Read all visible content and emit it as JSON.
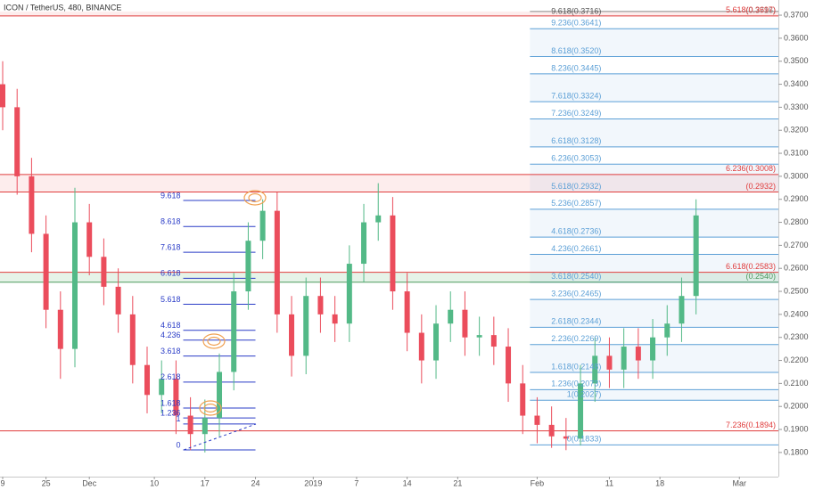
{
  "chart_data": {
    "type": "candlestick",
    "title": "ICON / TetherUS, 480, BINANCE",
    "up_color": "#53b987",
    "down_color": "#eb4d5c",
    "xlim": [
      -0.37,
      107.4
    ],
    "xticks": [
      {
        "value": 0,
        "label": "9"
      },
      {
        "value": 6,
        "label": "25"
      },
      {
        "value": 12,
        "label": "Dec"
      },
      {
        "value": 21,
        "label": "10"
      },
      {
        "value": 28,
        "label": "17"
      },
      {
        "value": 35,
        "label": "24"
      },
      {
        "value": 43,
        "label": "2019"
      },
      {
        "value": 49,
        "label": "7"
      },
      {
        "value": 56,
        "label": "14"
      },
      {
        "value": 63,
        "label": "21"
      },
      {
        "value": 74,
        "label": "Feb"
      },
      {
        "value": 84,
        "label": "11"
      },
      {
        "value": 91,
        "label": "18"
      },
      {
        "value": 102,
        "label": "Mar"
      }
    ],
    "ylim": [
      0.1695,
      0.3766
    ],
    "yticks": [
      {
        "value": 0.18,
        "label": "0.1800"
      },
      {
        "value": 0.19,
        "label": "0.1900"
      },
      {
        "value": 0.2,
        "label": "0.2000"
      },
      {
        "value": 0.21,
        "label": "0.2100"
      },
      {
        "value": 0.22,
        "label": "0.2200"
      },
      {
        "value": 0.23,
        "label": "0.2300"
      },
      {
        "value": 0.24,
        "label": "0.2400"
      },
      {
        "value": 0.25,
        "label": "0.2500"
      },
      {
        "value": 0.26,
        "label": "0.2600"
      },
      {
        "value": 0.27,
        "label": "0.2700"
      },
      {
        "value": 0.28,
        "label": "0.2800"
      },
      {
        "value": 0.29,
        "label": "0.2900"
      },
      {
        "value": 0.3,
        "label": "0.3000"
      },
      {
        "value": 0.31,
        "label": "0.3100"
      },
      {
        "value": 0.32,
        "label": "0.3200"
      },
      {
        "value": 0.33,
        "label": "0.3300"
      },
      {
        "value": 0.34,
        "label": "0.3400"
      },
      {
        "value": 0.35,
        "label": "0.3500"
      },
      {
        "value": 0.36,
        "label": "0.3600"
      },
      {
        "value": 0.37,
        "label": "0.3700"
      }
    ],
    "x": [
      0,
      2,
      4,
      6,
      8,
      10,
      12,
      14,
      16,
      18,
      20,
      22,
      24,
      26,
      28,
      30,
      32,
      34,
      36,
      38,
      40,
      42,
      44,
      46,
      48,
      50,
      52,
      54,
      56,
      58,
      60,
      62,
      64,
      66,
      68,
      70,
      72,
      74,
      76,
      78,
      80,
      82,
      84,
      86,
      88,
      90,
      92,
      94,
      96
    ],
    "open": [
      0.34,
      0.33,
      0.3,
      0.275,
      0.242,
      0.225,
      0.28,
      0.265,
      0.252,
      0.24,
      0.218,
      0.205,
      0.212,
      0.196,
      0.188,
      0.195,
      0.215,
      0.25,
      0.272,
      0.285,
      0.24,
      0.222,
      0.248,
      0.24,
      0.236,
      0.262,
      0.28,
      0.283,
      0.25,
      0.232,
      0.22,
      0.236,
      0.242,
      0.23,
      0.231,
      0.226,
      0.21,
      0.196,
      0.192,
      0.187,
      0.186,
      0.21,
      0.222,
      0.216,
      0.226,
      0.22,
      0.23,
      0.236,
      0.248
    ],
    "high": [
      0.35,
      0.338,
      0.308,
      0.283,
      0.25,
      0.295,
      0.288,
      0.273,
      0.26,
      0.248,
      0.226,
      0.22,
      0.22,
      0.204,
      0.203,
      0.223,
      0.258,
      0.28,
      0.29,
      0.293,
      0.248,
      0.256,
      0.256,
      0.248,
      0.27,
      0.288,
      0.297,
      0.291,
      0.258,
      0.24,
      0.244,
      0.25,
      0.25,
      0.239,
      0.239,
      0.234,
      0.218,
      0.204,
      0.2,
      0.195,
      0.218,
      0.23,
      0.23,
      0.234,
      0.234,
      0.238,
      0.244,
      0.256,
      0.29
    ],
    "low": [
      0.32,
      0.292,
      0.267,
      0.234,
      0.212,
      0.217,
      0.257,
      0.244,
      0.232,
      0.21,
      0.197,
      0.197,
      0.188,
      0.181,
      0.18,
      0.187,
      0.207,
      0.242,
      0.264,
      0.232,
      0.213,
      0.214,
      0.232,
      0.228,
      0.228,
      0.254,
      0.272,
      0.242,
      0.224,
      0.21,
      0.212,
      0.228,
      0.222,
      0.222,
      0.218,
      0.202,
      0.188,
      0.184,
      0.182,
      0.181,
      0.183,
      0.202,
      0.208,
      0.208,
      0.212,
      0.212,
      0.222,
      0.228,
      0.24
    ],
    "close": [
      0.33,
      0.3,
      0.275,
      0.242,
      0.225,
      0.28,
      0.265,
      0.252,
      0.24,
      0.218,
      0.205,
      0.212,
      0.196,
      0.188,
      0.195,
      0.215,
      0.25,
      0.272,
      0.285,
      0.24,
      0.222,
      0.248,
      0.24,
      0.236,
      0.262,
      0.28,
      0.283,
      0.25,
      0.232,
      0.22,
      0.236,
      0.242,
      0.23,
      0.231,
      0.226,
      0.21,
      0.196,
      0.192,
      0.187,
      0.186,
      0.21,
      0.222,
      0.216,
      0.226,
      0.22,
      0.23,
      0.236,
      0.248,
      0.283
    ],
    "fib_left": {
      "color": "#2a3cc7",
      "x_range": [
        25,
        35
      ],
      "levels": [
        {
          "ratio": 0,
          "price": 0.1811
        },
        {
          "ratio": 1,
          "price": 0.1924
        },
        {
          "ratio": 1.236,
          "price": 0.195
        },
        {
          "ratio": 1.618,
          "price": 0.1993
        },
        {
          "ratio": 2.618,
          "price": 0.2106
        },
        {
          "ratio": 3.618,
          "price": 0.2219
        },
        {
          "ratio": 4.236,
          "price": 0.2288
        },
        {
          "ratio": 4.618,
          "price": 0.2331
        },
        {
          "ratio": 5.618,
          "price": 0.2444
        },
        {
          "ratio": 6.618,
          "price": 0.2557
        },
        {
          "ratio": 7.618,
          "price": 0.267
        },
        {
          "ratio": 8.618,
          "price": 0.2782
        },
        {
          "ratio": 9.618,
          "price": 0.2895
        }
      ]
    },
    "fib_right": {
      "color": "#5b9fd6",
      "x_range": [
        73,
        108
      ],
      "levels": [
        {
          "label": "9.236(0.3641)",
          "price": 0.3641
        },
        {
          "label": "8.618(0.3520)",
          "price": 0.352
        },
        {
          "label": "8.236(0.3445)",
          "price": 0.3445
        },
        {
          "label": "7.618(0.3324)",
          "price": 0.3324
        },
        {
          "label": "7.236(0.3249)",
          "price": 0.3249
        },
        {
          "label": "6.618(0.3128)",
          "price": 0.3128
        },
        {
          "label": "6.236(0.3053)",
          "price": 0.3053
        },
        {
          "label": "5.618(0.2932)",
          "price": 0.2932
        },
        {
          "label": "5.236(0.2857)",
          "price": 0.2857
        },
        {
          "label": "4.618(0.2736)",
          "price": 0.2736
        },
        {
          "label": "4.236(0.2661)",
          "price": 0.2661
        },
        {
          "label": "3.618(0.2540)",
          "price": 0.254
        },
        {
          "label": "3.236(0.2465)",
          "price": 0.2465
        },
        {
          "label": "2.618(0.2344)",
          "price": 0.2344
        },
        {
          "label": "2.236(0.2269)",
          "price": 0.2269
        },
        {
          "label": "1.618(0.2148)",
          "price": 0.2148
        },
        {
          "label": "1.236(0.2073)",
          "price": 0.2073
        },
        {
          "label": "1(0.2027)",
          "price": 0.2027
        },
        {
          "label": "0(0.1833)",
          "price": 0.1833
        }
      ]
    },
    "top_level": {
      "label": "9.618(0.3716)",
      "right_label": "(0.3716)",
      "price": 0.3716,
      "color": "#888888"
    },
    "red_levels": {
      "color": "#e03c3c",
      "levels": [
        {
          "label": "5.618(0.3697)",
          "price": 0.3697
        },
        {
          "label": "6.236(0.3008)",
          "price": 0.3008
        },
        {
          "label": "(0.2932)",
          "price": 0.2932
        },
        {
          "label": "6.618(0.2583)",
          "price": 0.2583
        },
        {
          "label": "7.236(0.1894)",
          "price": 0.1894
        }
      ]
    },
    "green_levels": {
      "color": "#4c9a5e",
      "levels": [
        {
          "label": "(0.2540)",
          "price": 0.254
        }
      ]
    }
  }
}
